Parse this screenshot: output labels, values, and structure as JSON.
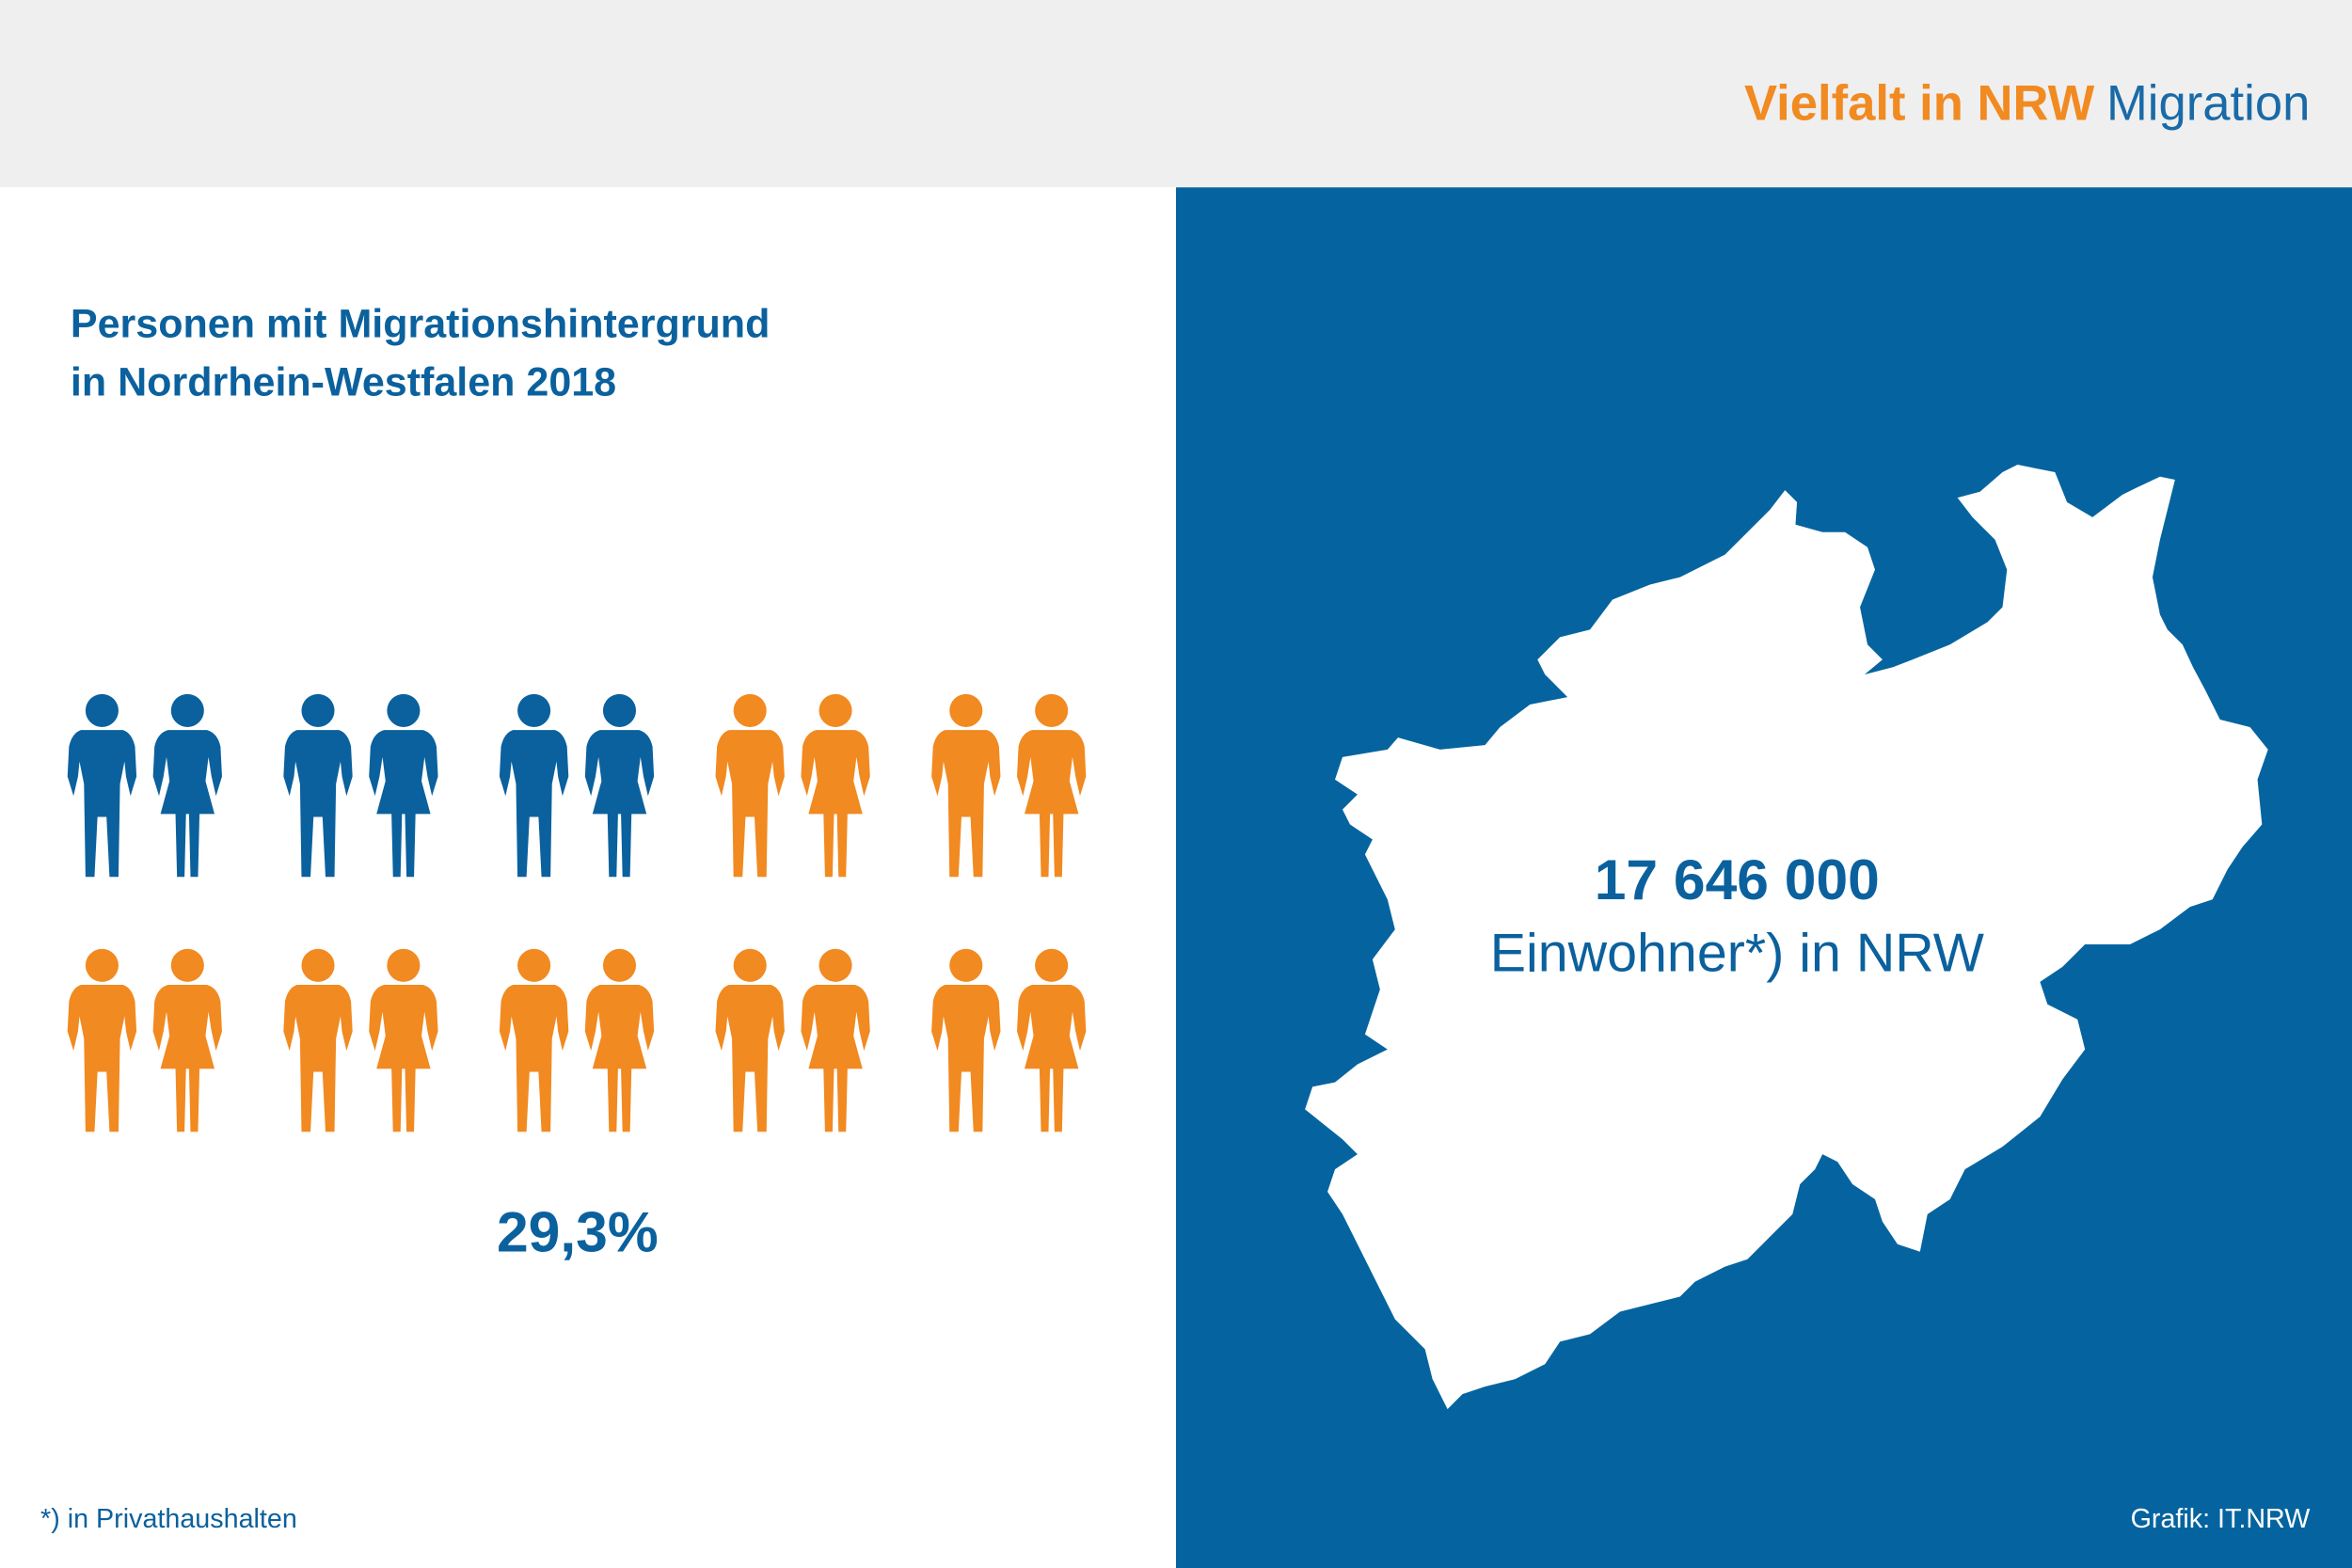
{
  "header": {
    "title_highlight": "Vielfalt in NRW",
    "title_rest": "Migration"
  },
  "left": {
    "heading_line1": "Personen mit Migrationshintergrund",
    "heading_line2": "in Nordrhein-Westfalen 2018",
    "share": "29,3%",
    "footnote": "*)  in Privathaushalten"
  },
  "right": {
    "population": "17 646 000",
    "population_label": "Einwohner*) in NRW",
    "credit": "Grafik: IT.NRW"
  }
}
